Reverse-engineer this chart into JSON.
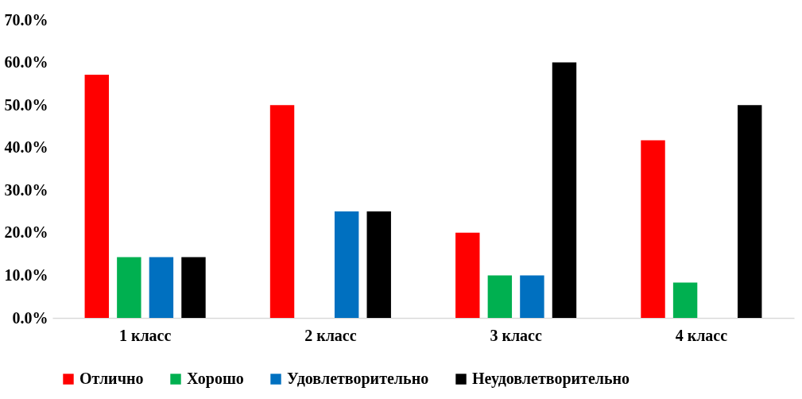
{
  "chart_data": {
    "type": "bar",
    "categories": [
      "1 класс",
      "2 класс",
      "3 класс",
      "4 класс"
    ],
    "series": [
      {
        "name": "Отлично",
        "color": "#ff0000",
        "values": [
          57.1,
          50,
          20,
          41.7
        ]
      },
      {
        "name": "Хорошо",
        "color": "#00b050",
        "values": [
          14.3,
          0,
          10,
          8.3
        ]
      },
      {
        "name": "Удовлетворительно",
        "color": "#0070c0",
        "values": [
          14.3,
          25,
          10,
          0
        ]
      },
      {
        "name": "Неудовлетворительно",
        "color": "#000000",
        "values": [
          14.3,
          25,
          60,
          50
        ]
      }
    ],
    "ylim": [
      0,
      70
    ],
    "yticks": [
      {
        "value": 0,
        "label": "0.0%"
      },
      {
        "value": 10,
        "label": "10.0%"
      },
      {
        "value": 20,
        "label": "20.0%"
      },
      {
        "value": 30,
        "label": "30.0%"
      },
      {
        "value": 40,
        "label": "40.0%"
      },
      {
        "value": 50,
        "label": "50.0%"
      },
      {
        "value": 60,
        "label": "60.0%"
      },
      {
        "value": 70,
        "label": "70.0%"
      }
    ],
    "grid": false,
    "legend": "bottom"
  }
}
